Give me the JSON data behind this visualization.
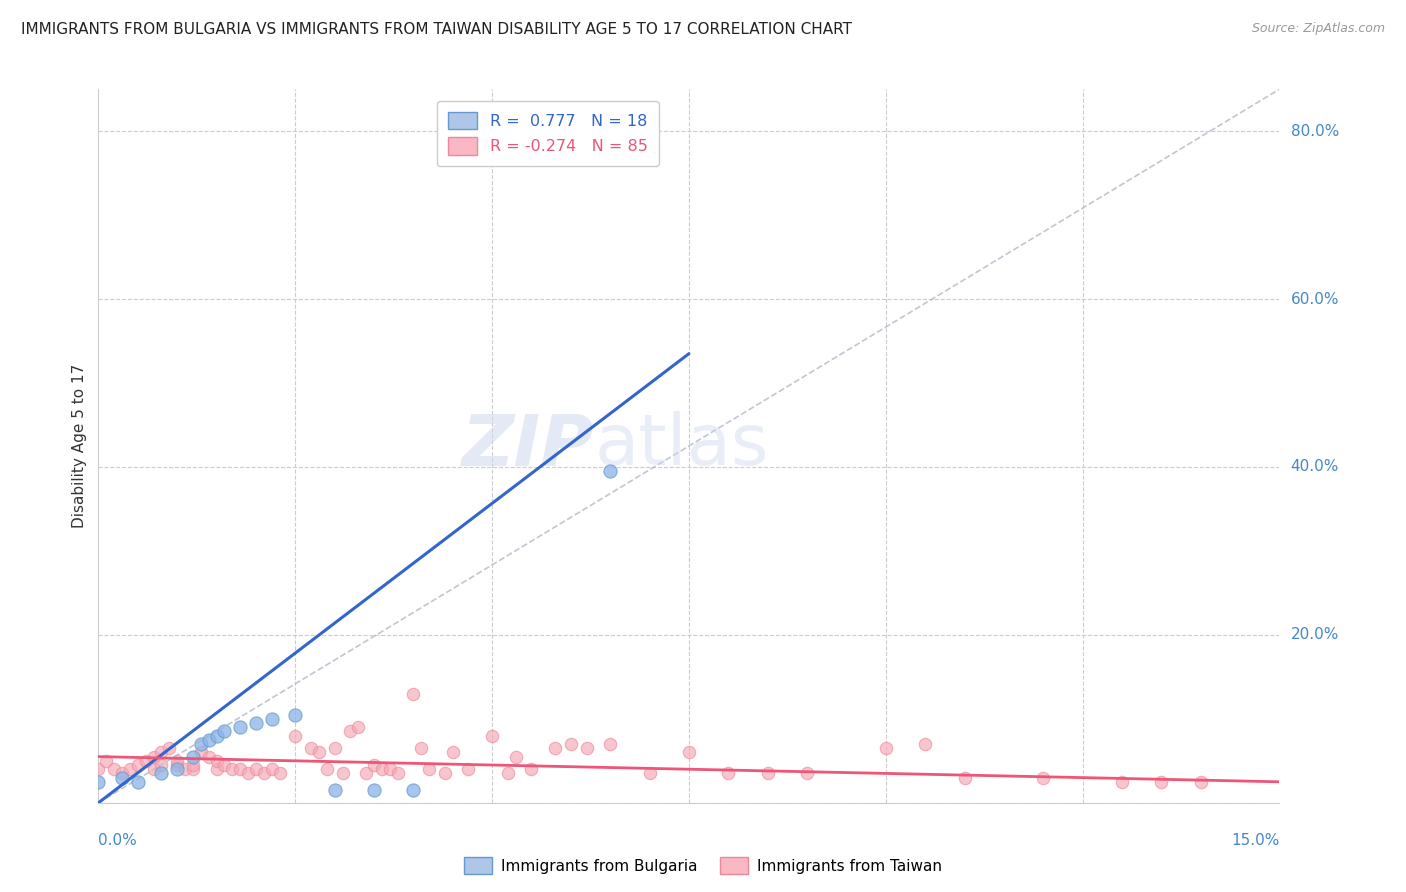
{
  "title": "IMMIGRANTS FROM BULGARIA VS IMMIGRANTS FROM TAIWAN DISABILITY AGE 5 TO 17 CORRELATION CHART",
  "source": "Source: ZipAtlas.com",
  "ylabel": "Disability Age 5 to 17",
  "xlim": [
    0.0,
    0.15
  ],
  "ylim": [
    0.0,
    0.85
  ],
  "yticks": [
    0.0,
    0.2,
    0.4,
    0.6,
    0.8
  ],
  "ytick_labels": [
    "",
    "20.0%",
    "40.0%",
    "60.0%",
    "80.0%"
  ],
  "bulgaria_color": "#8ab4e8",
  "taiwan_color": "#f4a7b5",
  "bulgaria_edge": "#6699cc",
  "taiwan_edge": "#ee8899",
  "bulgaria_x": [
    0.0,
    0.003,
    0.005,
    0.008,
    0.01,
    0.012,
    0.013,
    0.014,
    0.015,
    0.016,
    0.018,
    0.02,
    0.022,
    0.025,
    0.03,
    0.035,
    0.04,
    0.065
  ],
  "bulgaria_y": [
    0.025,
    0.03,
    0.025,
    0.035,
    0.04,
    0.055,
    0.07,
    0.075,
    0.08,
    0.085,
    0.09,
    0.095,
    0.1,
    0.105,
    0.015,
    0.015,
    0.015,
    0.395
  ],
  "taiwan_x": [
    0.0,
    0.001,
    0.002,
    0.003,
    0.004,
    0.005,
    0.006,
    0.007,
    0.007,
    0.008,
    0.008,
    0.009,
    0.01,
    0.01,
    0.011,
    0.012,
    0.012,
    0.013,
    0.014,
    0.015,
    0.015,
    0.016,
    0.017,
    0.018,
    0.019,
    0.02,
    0.021,
    0.022,
    0.023,
    0.025,
    0.027,
    0.028,
    0.029,
    0.03,
    0.031,
    0.032,
    0.033,
    0.034,
    0.035,
    0.036,
    0.037,
    0.038,
    0.04,
    0.041,
    0.042,
    0.044,
    0.045,
    0.047,
    0.05,
    0.052,
    0.053,
    0.055,
    0.058,
    0.06,
    0.062,
    0.065,
    0.07,
    0.075,
    0.08,
    0.085,
    0.09,
    0.1,
    0.105,
    0.11,
    0.12,
    0.13,
    0.135,
    0.14
  ],
  "taiwan_y": [
    0.04,
    0.05,
    0.04,
    0.035,
    0.04,
    0.045,
    0.05,
    0.04,
    0.055,
    0.045,
    0.06,
    0.065,
    0.045,
    0.05,
    0.04,
    0.04,
    0.045,
    0.06,
    0.055,
    0.04,
    0.05,
    0.045,
    0.04,
    0.04,
    0.035,
    0.04,
    0.035,
    0.04,
    0.035,
    0.08,
    0.065,
    0.06,
    0.04,
    0.065,
    0.035,
    0.085,
    0.09,
    0.035,
    0.045,
    0.04,
    0.04,
    0.035,
    0.13,
    0.065,
    0.04,
    0.035,
    0.06,
    0.04,
    0.08,
    0.035,
    0.055,
    0.04,
    0.065,
    0.07,
    0.065,
    0.07,
    0.035,
    0.06,
    0.035,
    0.035,
    0.035,
    0.065,
    0.07,
    0.03,
    0.03,
    0.025,
    0.025,
    0.025
  ],
  "blue_line_x1": 0.0,
  "blue_line_y1": 0.0,
  "blue_line_x2": 0.075,
  "blue_line_y2": 0.535,
  "pink_line_x1": 0.0,
  "pink_line_y1": 0.055,
  "pink_line_x2": 0.15,
  "pink_line_y2": 0.025,
  "diagonal_line_x1": 0.0,
  "diagonal_line_y1": 0.0,
  "diagonal_line_x2": 0.15,
  "diagonal_line_y2": 0.85,
  "watermark_zip": "ZIP",
  "watermark_atlas": "atlas",
  "bg_color": "#ffffff",
  "grid_color": "#cccccc",
  "title_color": "#222222",
  "axis_label_color": "#4488cc",
  "right_axis_color": "#4488cc"
}
